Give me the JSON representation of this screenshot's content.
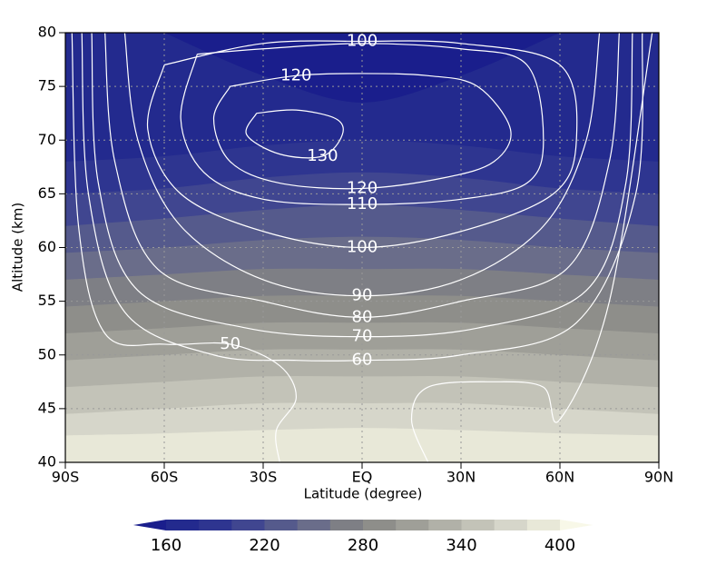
{
  "chart_data": {
    "type": "contour",
    "xlabel": "Latitude (degree)",
    "ylabel": "Altitude (km)",
    "xlim": [
      -90,
      90
    ],
    "xticks": [
      {
        "value": -90,
        "label": "90S"
      },
      {
        "value": -60,
        "label": "60S"
      },
      {
        "value": -30,
        "label": "30S"
      },
      {
        "value": 0,
        "label": "EQ"
      },
      {
        "value": 30,
        "label": "30N"
      },
      {
        "value": 60,
        "label": "60N"
      },
      {
        "value": 90,
        "label": "90N"
      }
    ],
    "ylim": [
      40,
      80
    ],
    "yticks": [
      40,
      45,
      50,
      55,
      60,
      65,
      70,
      75,
      80
    ],
    "grid": true,
    "levels": [
      160,
      180,
      200,
      220,
      240,
      260,
      280,
      300,
      320,
      340,
      360,
      380,
      400
    ],
    "colors": [
      "#1a1e8c",
      "#232a8e",
      "#2e3590",
      "#404690",
      "#555a8c",
      "#6a6d8a",
      "#7e7f85",
      "#8e8e8a",
      "#9f9f98",
      "#b1b1a8",
      "#c3c3b8",
      "#d6d6ca",
      "#e8e8d8",
      "#f8f8e8"
    ],
    "colorbar_ticks": [
      160,
      220,
      280,
      340,
      400
    ],
    "fill_contours": [
      {
        "level": 380,
        "x": [
          -90,
          -60,
          -30,
          0,
          30,
          60,
          90
        ],
        "y": [
          42.5,
          42.7,
          43,
          43.2,
          43,
          42.7,
          42.5
        ]
      },
      {
        "level": 360,
        "x": [
          -90,
          -60,
          -30,
          0,
          30,
          60,
          90
        ],
        "y": [
          44.5,
          45,
          45.5,
          45.5,
          45.5,
          45,
          44.5
        ]
      },
      {
        "level": 340,
        "x": [
          -90,
          -60,
          -30,
          0,
          30,
          60,
          90
        ],
        "y": [
          47,
          47.5,
          48,
          48,
          48,
          47.5,
          47
        ]
      },
      {
        "level": 320,
        "x": [
          -90,
          -60,
          -30,
          0,
          30,
          60,
          90
        ],
        "y": [
          49.5,
          50,
          50.5,
          50.5,
          50.5,
          50,
          49.5
        ]
      },
      {
        "level": 300,
        "x": [
          -90,
          -60,
          -30,
          0,
          30,
          60,
          90
        ],
        "y": [
          52,
          52.5,
          53,
          53,
          53,
          52.5,
          52
        ]
      },
      {
        "level": 280,
        "x": [
          -90,
          -60,
          -30,
          0,
          30,
          60,
          90
        ],
        "y": [
          54.5,
          55,
          55.5,
          55.5,
          55.5,
          55,
          54.5
        ]
      },
      {
        "level": 260,
        "x": [
          -90,
          -60,
          -30,
          0,
          30,
          60,
          90
        ],
        "y": [
          57,
          57.5,
          58,
          58,
          58,
          57.5,
          57
        ]
      },
      {
        "level": 240,
        "x": [
          -90,
          -60,
          -30,
          0,
          30,
          60,
          90
        ],
        "y": [
          59.5,
          60,
          60.7,
          61,
          60.7,
          60,
          59.5
        ]
      },
      {
        "level": 220,
        "x": [
          -90,
          -60,
          -30,
          0,
          30,
          60,
          90
        ],
        "y": [
          62,
          62.7,
          63.5,
          64,
          63.5,
          62.7,
          62
        ]
      },
      {
        "level": 200,
        "x": [
          -90,
          -60,
          -30,
          0,
          30,
          60,
          90
        ],
        "y": [
          65,
          65.5,
          66.5,
          67,
          66.5,
          65.5,
          65
        ]
      },
      {
        "level": 180,
        "x": [
          -90,
          -60,
          -30,
          0,
          30,
          60,
          90
        ],
        "y": [
          68,
          68.5,
          69.5,
          70,
          69.5,
          68.5,
          68
        ]
      },
      {
        "level": 160,
        "x": [
          -60,
          -30,
          0,
          30,
          60
        ],
        "y": [
          80,
          76,
          73.5,
          76,
          80
        ]
      }
    ],
    "contours": [
      {
        "level": 130,
        "x": [
          -32,
          -20,
          -8,
          -6,
          -12,
          -25,
          -35,
          -32
        ],
        "y": [
          72.5,
          72.8,
          72,
          70.5,
          68.5,
          68.7,
          70.5,
          72.5
        ]
      },
      {
        "level": 120,
        "x": [
          -40,
          -20,
          0,
          20,
          35,
          45,
          40,
          25,
          0,
          -25,
          -40,
          -45,
          -40
        ],
        "y": [
          75,
          76,
          76.2,
          76,
          75,
          71,
          68,
          66.5,
          65.5,
          66,
          68,
          72,
          75
        ]
      },
      {
        "level": 110,
        "x": [
          -50,
          -30,
          0,
          30,
          50,
          55,
          50,
          30,
          0,
          -30,
          -48,
          -55,
          -50
        ],
        "y": [
          78,
          78.5,
          79,
          78.5,
          77,
          70,
          66,
          64.5,
          64,
          64.5,
          67,
          72,
          78
        ]
      },
      {
        "level": 100,
        "x": [
          -60,
          -30,
          0,
          30,
          60,
          65,
          58,
          30,
          0,
          -30,
          -55,
          -65,
          -60
        ],
        "y": [
          77,
          79,
          79.2,
          79,
          77,
          70,
          65,
          61.5,
          60,
          61.5,
          65,
          71,
          77
        ]
      },
      {
        "level": 90,
        "x": [
          -72,
          -68,
          -55,
          -30,
          0,
          30,
          55,
          68,
          72
        ],
        "y": [
          80,
          70,
          62,
          57,
          55.5,
          57,
          62,
          70,
          80
        ]
      },
      {
        "level": 80,
        "x": [
          -78,
          -75,
          -62,
          -30,
          0,
          30,
          62,
          75,
          78
        ],
        "y": [
          80,
          68,
          58,
          55,
          53.5,
          55,
          58,
          68,
          80
        ]
      },
      {
        "level": 70,
        "x": [
          -82,
          -80,
          -68,
          -35,
          0,
          35,
          68,
          80,
          82
        ],
        "y": [
          80,
          66,
          56,
          52.5,
          51.7,
          52.5,
          56,
          66,
          80
        ]
      },
      {
        "level": 60,
        "x": [
          -85,
          -83,
          -72,
          -45,
          -20,
          0,
          30,
          65,
          83,
          85
        ],
        "y": [
          80,
          65,
          54,
          50,
          49.5,
          49.5,
          50,
          53,
          65,
          80
        ]
      },
      {
        "level": 50,
        "x": [
          -88,
          -86,
          -78,
          -60,
          -40,
          -25,
          -20,
          -26,
          -25,
          null,
          20,
          15,
          20,
          40,
          55,
          60,
          75,
          88
        ],
        "y": [
          80,
          62,
          52,
          51,
          51,
          49,
          46,
          43,
          40,
          null,
          40,
          44,
          47,
          47.5,
          47,
          44,
          55,
          80
        ]
      }
    ]
  }
}
